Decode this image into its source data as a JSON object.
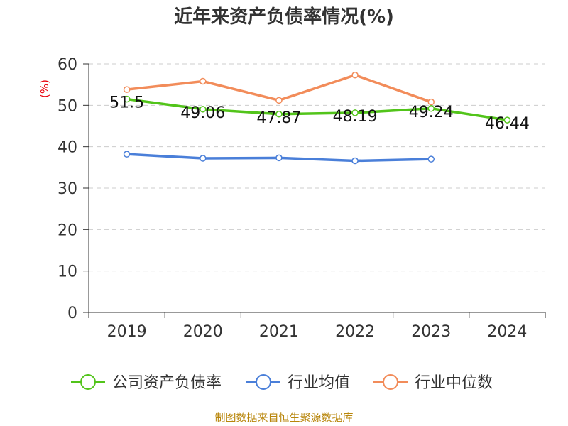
{
  "chart_data": {
    "type": "line",
    "title": "近年来资产负债率情况(%)",
    "ylabel": "(%)",
    "categories": [
      "2019",
      "2020",
      "2021",
      "2022",
      "2023",
      "2024"
    ],
    "ylim": [
      0,
      60
    ],
    "yticks": [
      0,
      10,
      20,
      30,
      40,
      50,
      60
    ],
    "grid": true,
    "legend_position": "bottom",
    "series": [
      {
        "name": "公司资产负债率",
        "color": "#52c41a",
        "values": [
          51.5,
          49.06,
          47.87,
          48.19,
          49.24,
          46.44
        ],
        "labels": [
          "51.5",
          "49.06",
          "47.87",
          "48.19",
          "49.24",
          "46.44"
        ]
      },
      {
        "name": "行业均值",
        "color": "#4a7fd9",
        "values": [
          38.2,
          37.2,
          37.3,
          36.6,
          37.0,
          null
        ]
      },
      {
        "name": "行业中位数",
        "color": "#f28c5a",
        "values": [
          53.8,
          55.8,
          51.2,
          57.3,
          50.8,
          null
        ]
      }
    ],
    "source": "制图数据来自恒生聚源数据库"
  }
}
